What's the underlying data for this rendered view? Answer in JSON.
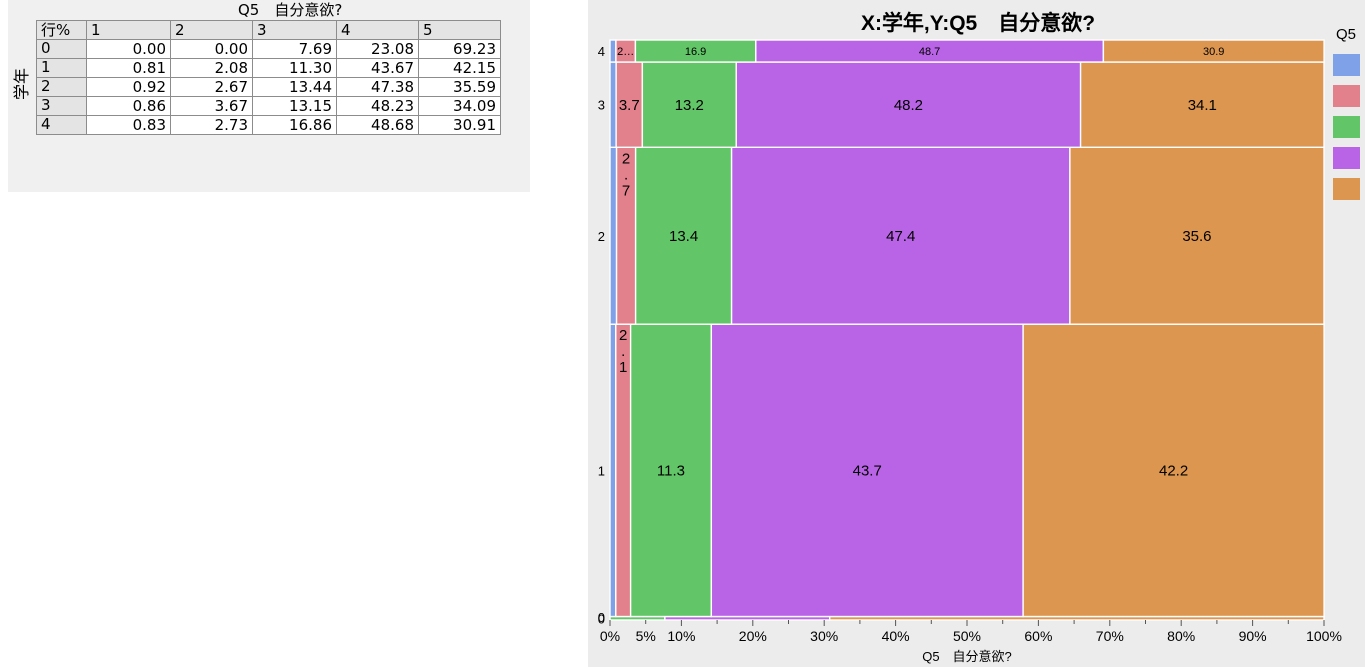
{
  "table": {
    "title": "Q5　自分意欲?",
    "row_axis_label": "学年",
    "corner_label": "行%",
    "columns": [
      "1",
      "2",
      "3",
      "4",
      "5"
    ],
    "rows": [
      {
        "label": "0",
        "values": [
          "0.00",
          "0.00",
          "7.69",
          "23.08",
          "69.23"
        ]
      },
      {
        "label": "1",
        "values": [
          "0.81",
          "2.08",
          "11.30",
          "43.67",
          "42.15"
        ]
      },
      {
        "label": "2",
        "values": [
          "0.92",
          "2.67",
          "13.44",
          "47.38",
          "35.59"
        ]
      },
      {
        "label": "3",
        "values": [
          "0.86",
          "3.67",
          "13.15",
          "48.23",
          "34.09"
        ]
      },
      {
        "label": "4",
        "values": [
          "0.83",
          "2.73",
          "16.86",
          "48.68",
          "30.91"
        ]
      }
    ]
  },
  "chart_data": {
    "type": "mosaic",
    "title": "X:学年,Y:Q5　自分意欲?",
    "xlabel": "Q5　自分意欲?",
    "ylabel": "",
    "legend_title": "Q5",
    "legend_position": "right",
    "x_ticks": [
      "0%",
      "5%",
      "10%",
      "20%",
      "30%",
      "40%",
      "50%",
      "60%",
      "70%",
      "80%",
      "90%",
      "100%"
    ],
    "x_range": [
      0,
      100
    ],
    "colors": [
      "#7ea1e8",
      "#e2808c",
      "#62c568",
      "#b964e6",
      "#dc9650"
    ],
    "categories": [
      "1",
      "2",
      "3",
      "4",
      "5"
    ],
    "groups": [
      {
        "label": "0",
        "share": 0.6,
        "values": [
          0.0,
          0.0,
          7.69,
          23.08,
          69.23
        ],
        "labels": [
          "",
          "",
          "",
          "",
          ""
        ]
      },
      {
        "label": "1",
        "share": 50.4,
        "values": [
          0.81,
          2.08,
          11.3,
          43.67,
          42.15
        ],
        "labels": [
          "",
          "2.1",
          "11.3",
          "43.7",
          "42.2"
        ]
      },
      {
        "label": "2",
        "share": 30.5,
        "values": [
          0.92,
          2.67,
          13.44,
          47.38,
          35.59
        ],
        "labels": [
          "",
          "2.7",
          "13.4",
          "47.4",
          "35.6"
        ]
      },
      {
        "label": "3",
        "share": 14.7,
        "values": [
          0.86,
          3.67,
          13.15,
          48.23,
          34.09
        ],
        "labels": [
          "",
          "3.7",
          "13.2",
          "48.2",
          "34.1"
        ]
      },
      {
        "label": "4",
        "share": 3.8,
        "values": [
          0.83,
          2.73,
          16.86,
          48.68,
          30.91
        ],
        "labels": [
          "",
          "2…",
          "16.9",
          "48.7",
          "30.9"
        ]
      }
    ]
  }
}
